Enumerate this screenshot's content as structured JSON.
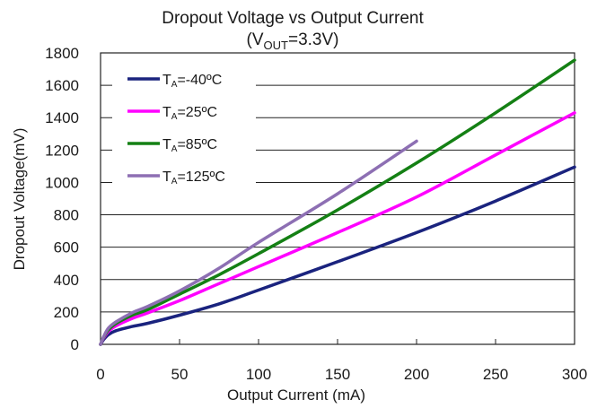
{
  "chart_data": {
    "type": "line",
    "title": "Dropout Voltage vs Output Current",
    "subtitle": {
      "prefix": "(V",
      "sub": "OUT",
      "suffix": "=3.3V)"
    },
    "xlabel": "Output Current (mA)",
    "ylabel": "Dropout Voltage(mV)",
    "xlim": [
      0,
      300
    ],
    "ylim": [
      0,
      1800
    ],
    "xticks": [
      0,
      50,
      100,
      150,
      200,
      250,
      300
    ],
    "yticks": [
      0,
      200,
      400,
      600,
      800,
      1000,
      1200,
      1400,
      1600,
      1800
    ],
    "grid": "horizontal",
    "legend_position": "top-left",
    "series": [
      {
        "name": "-40ºC",
        "label_main": "T",
        "label_sub": "A",
        "label_rest": "=-40ºC",
        "color": "#1a237e",
        "x": [
          0,
          2,
          5,
          10,
          20,
          30,
          50,
          75,
          100,
          150,
          200,
          250,
          300
        ],
        "y": [
          0,
          30,
          60,
          85,
          110,
          130,
          180,
          250,
          335,
          510,
          690,
          885,
          1095
        ]
      },
      {
        "name": "25ºC",
        "label_main": "T",
        "label_sub": "A",
        "label_rest": "=25ºC",
        "color": "#ff00ff",
        "x": [
          0,
          2,
          5,
          10,
          20,
          30,
          50,
          75,
          100,
          150,
          200,
          250,
          300
        ],
        "y": [
          0,
          40,
          80,
          115,
          160,
          195,
          270,
          375,
          480,
          690,
          910,
          1170,
          1430
        ]
      },
      {
        "name": "85ºC",
        "label_main": "T",
        "label_sub": "A",
        "label_rest": "=85ºC",
        "color": "#148014",
        "x": [
          0,
          2,
          5,
          10,
          20,
          30,
          50,
          75,
          100,
          150,
          200,
          250,
          300
        ],
        "y": [
          0,
          45,
          90,
          130,
          180,
          215,
          310,
          430,
          560,
          830,
          1120,
          1430,
          1755
        ]
      },
      {
        "name": "125ºC",
        "label_main": "T",
        "label_sub": "A",
        "label_rest": "=125ºC",
        "color": "#8d6fb3",
        "x": [
          0,
          2,
          5,
          10,
          20,
          30,
          50,
          75,
          100,
          150,
          200
        ],
        "y": [
          0,
          48,
          100,
          140,
          195,
          235,
          330,
          470,
          630,
          930,
          1255
        ]
      }
    ]
  }
}
